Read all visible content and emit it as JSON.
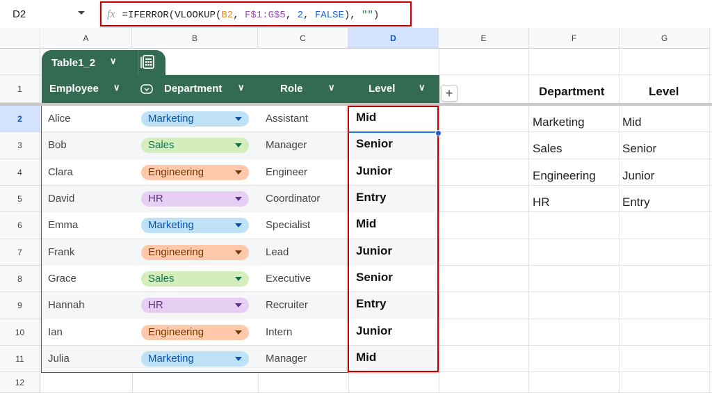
{
  "namebox": {
    "ref": "D2"
  },
  "formula": {
    "prefix": "=IFERROR(VLOOKUP(",
    "arg1": "B2",
    "sep1": ", ",
    "arg2": "F$1:G$5",
    "sep2": ", ",
    "arg3": "2",
    "sep3": ", ",
    "arg4": "FALSE",
    "sep4": "), ",
    "arg5": "\"\"",
    "suffix": ")"
  },
  "columns": [
    "A",
    "B",
    "C",
    "D",
    "E",
    "F",
    "G"
  ],
  "rows": [
    "1",
    "2",
    "3",
    "4",
    "5",
    "6",
    "7",
    "8",
    "9",
    "10",
    "11",
    "12"
  ],
  "table": {
    "name": "Table1_2",
    "headers": [
      "Employee",
      "Department",
      "Role",
      "Level"
    ],
    "rows": [
      {
        "employee": "Alice",
        "department": "Marketing",
        "role": "Assistant",
        "level": "Mid"
      },
      {
        "employee": "Bob",
        "department": "Sales",
        "role": "Manager",
        "level": "Senior"
      },
      {
        "employee": "Clara",
        "department": "Engineering",
        "role": "Engineer",
        "level": "Junior"
      },
      {
        "employee": "David",
        "department": "HR",
        "role": "Coordinator",
        "level": "Entry"
      },
      {
        "employee": "Emma",
        "department": "Marketing",
        "role": "Specialist",
        "level": "Mid"
      },
      {
        "employee": "Frank",
        "department": "Engineering",
        "role": "Lead",
        "level": "Junior"
      },
      {
        "employee": "Grace",
        "department": "Sales",
        "role": "Executive",
        "level": "Senior"
      },
      {
        "employee": "Hannah",
        "department": "HR",
        "role": "Recruiter",
        "level": "Entry"
      },
      {
        "employee": "Ian",
        "department": "Engineering",
        "role": "Intern",
        "level": "Junior"
      },
      {
        "employee": "Julia",
        "department": "Marketing",
        "role": "Manager",
        "level": "Mid"
      }
    ]
  },
  "chip_colors": {
    "Marketing": {
      "bg": "#bfe1f6",
      "fg": "#0a53a8"
    },
    "Sales": {
      "bg": "#d4edbc",
      "fg": "#11734b"
    },
    "Engineering": {
      "bg": "#ffc8aa",
      "fg": "#753800"
    },
    "HR": {
      "bg": "#e6cff2",
      "fg": "#5a3286"
    }
  },
  "lookup": {
    "headers": [
      "Department",
      "Level"
    ],
    "rows": [
      [
        "Marketing",
        "Mid"
      ],
      [
        "Sales",
        "Senior"
      ],
      [
        "Engineering",
        "Junior"
      ],
      [
        "HR",
        "Entry"
      ]
    ]
  },
  "add_column_label": "+"
}
